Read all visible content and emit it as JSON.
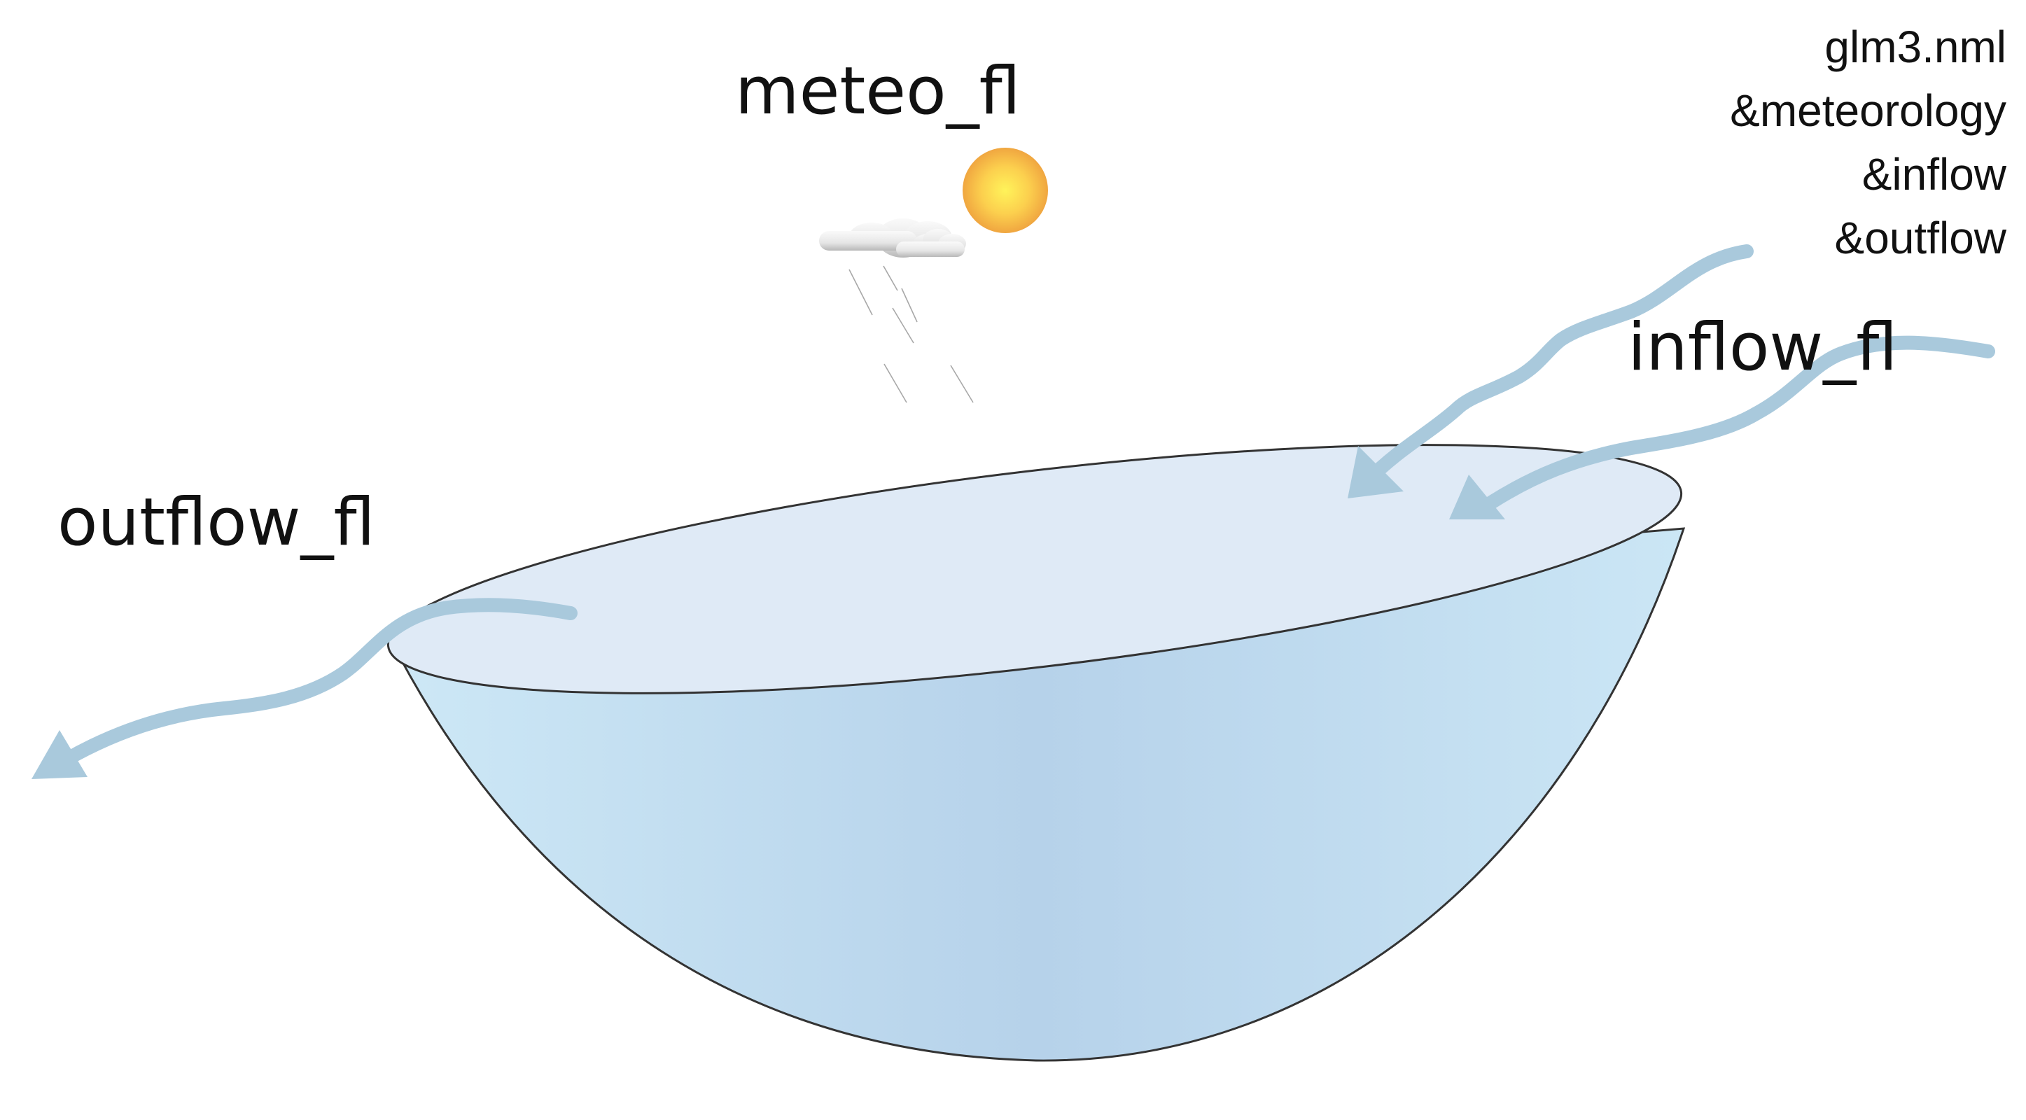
{
  "labels": {
    "meteo": "meteo_fl",
    "inflow": "inflow_fl",
    "outflow": "outflow_fl"
  },
  "config_file": {
    "filename": "glm3.nml",
    "sections": [
      "&meteorology",
      "&inflow",
      "&outflow"
    ]
  },
  "icons": {
    "sun": "sun-icon",
    "cloud": "rain-cloud-icon",
    "lake": "lake-basin",
    "inflow_arrows": "arrow-icon",
    "outflow_arrow": "arrow-icon"
  },
  "colors": {
    "arrow": "#a9c9dc",
    "lake_rim": "#333333",
    "lake_surface": "#dfeaf6",
    "lake_body_light": "#c9e4f4",
    "lake_body_dark": "#b6d2ea",
    "sun_core": "#ffe94a",
    "sun_edge": "#f2a940"
  }
}
